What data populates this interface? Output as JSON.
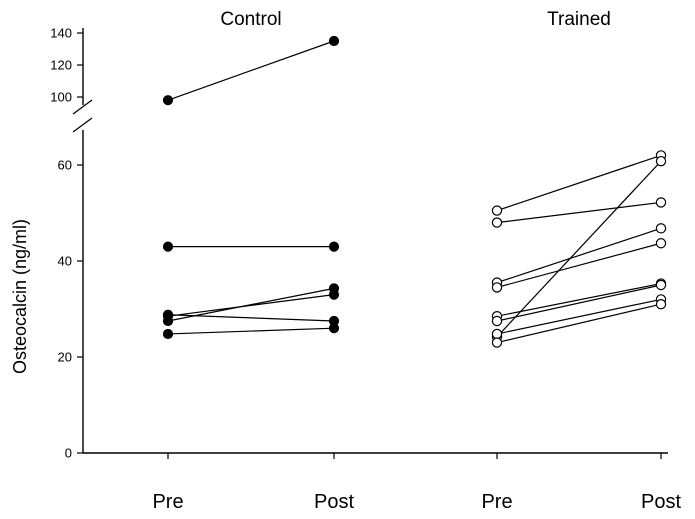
{
  "chart_data": {
    "type": "line",
    "ylabel": "Osteocalcin (ng/ml)",
    "y_axis_break": true,
    "lower_ylim": [
      0,
      68
    ],
    "upper_ylim": [
      90,
      142
    ],
    "lower_ticks": [
      0,
      20,
      40,
      60
    ],
    "upper_ticks": [
      100,
      120,
      140
    ],
    "grid": false,
    "legend": "none",
    "groups": [
      {
        "name": "Control",
        "marker": "filled-circle",
        "categories": [
          "Pre",
          "Post"
        ],
        "series": [
          {
            "values": [
              98,
              135
            ]
          },
          {
            "values": [
              43,
              43
            ]
          },
          {
            "values": [
              28.8,
              27.5
            ]
          },
          {
            "values": [
              27.5,
              34.3
            ]
          },
          {
            "values": [
              28.5,
              33.0
            ]
          },
          {
            "values": [
              24.8,
              26.0
            ]
          }
        ]
      },
      {
        "name": "Trained",
        "marker": "open-circle",
        "categories": [
          "Pre",
          "Post"
        ],
        "series": [
          {
            "values": [
              50.5,
              62.0
            ]
          },
          {
            "values": [
              48.0,
              52.2
            ]
          },
          {
            "values": [
              35.5,
              46.8
            ]
          },
          {
            "values": [
              34.5,
              43.7
            ]
          },
          {
            "values": [
              24.2,
              60.8
            ]
          },
          {
            "values": [
              28.5,
              35.3
            ]
          },
          {
            "values": [
              27.5,
              35.0
            ]
          },
          {
            "values": [
              24.8,
              32.0
            ]
          },
          {
            "values": [
              23.0,
              31.0
            ]
          }
        ]
      }
    ]
  }
}
